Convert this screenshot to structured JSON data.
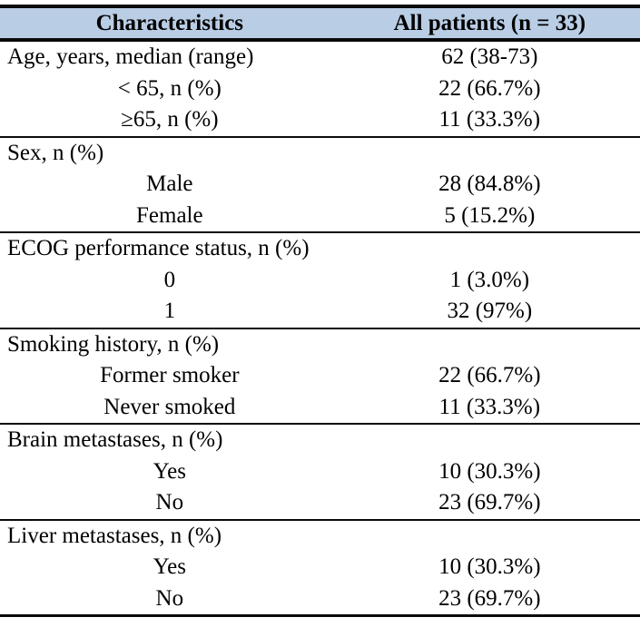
{
  "table": {
    "header_bg": "#b9cde5",
    "rule_color": "#0a0a0a",
    "columns": [
      "Characteristics",
      "All patients (n = 33)"
    ],
    "sections": [
      {
        "rows": [
          {
            "label": "Age, years, median (range)",
            "value": "62 (38-73)",
            "indent": false
          },
          {
            "label": "< 65, n (%)",
            "value": "22 (66.7%)",
            "indent": true
          },
          {
            "label": "≥65, n (%)",
            "value": "11 (33.3%)",
            "indent": true
          }
        ]
      },
      {
        "rows": [
          {
            "label": "Sex, n (%)",
            "value": "",
            "indent": false
          },
          {
            "label": "Male",
            "value": "28 (84.8%)",
            "indent": true
          },
          {
            "label": "Female",
            "value": "5 (15.2%)",
            "indent": true
          }
        ]
      },
      {
        "rows": [
          {
            "label": "ECOG performance status, n (%)",
            "value": "",
            "indent": false
          },
          {
            "label": "0",
            "value": "1 (3.0%)",
            "indent": true
          },
          {
            "label": "1",
            "value": "32 (97%)",
            "indent": true
          }
        ]
      },
      {
        "rows": [
          {
            "label": "Smoking history, n (%)",
            "value": "",
            "indent": false
          },
          {
            "label": "Former smoker",
            "value": "22 (66.7%)",
            "indent": true
          },
          {
            "label": "Never smoked",
            "value": "11 (33.3%)",
            "indent": true
          }
        ]
      },
      {
        "rows": [
          {
            "label": "Brain metastases, n (%)",
            "value": "",
            "indent": false
          },
          {
            "label": "Yes",
            "value": "10 (30.3%)",
            "indent": true
          },
          {
            "label": "No",
            "value": "23 (69.7%)",
            "indent": true
          }
        ]
      },
      {
        "rows": [
          {
            "label": "Liver metastases, n (%)",
            "value": "",
            "indent": false
          },
          {
            "label": "Yes",
            "value": "10 (30.3%)",
            "indent": true
          },
          {
            "label": "No",
            "value": "23 (69.7%)",
            "indent": true
          }
        ]
      }
    ]
  }
}
